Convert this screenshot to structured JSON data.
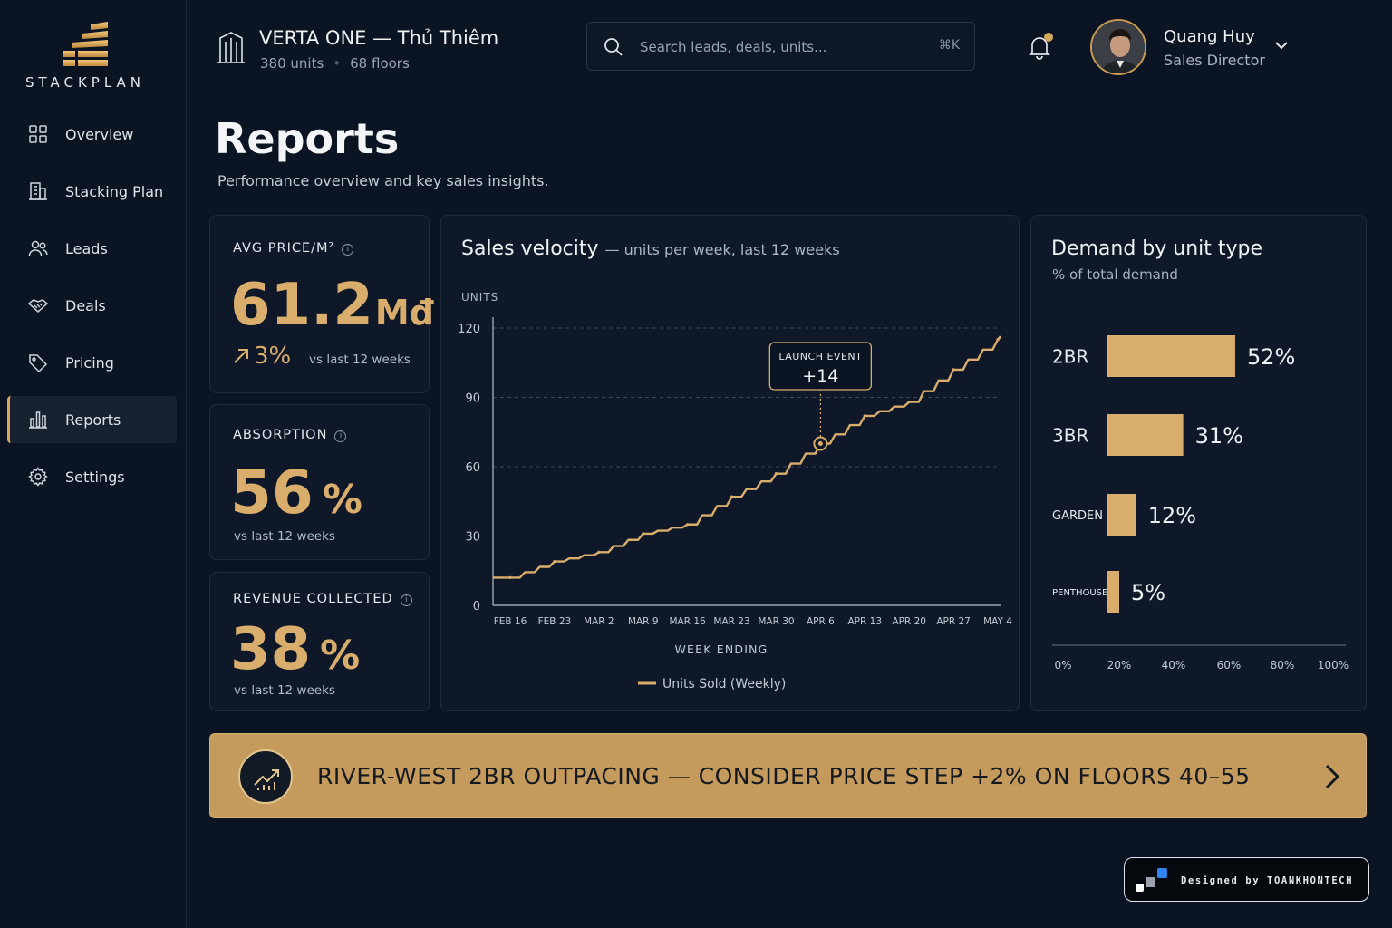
{
  "brand": {
    "name": "STACKPLAN"
  },
  "nav": {
    "items": [
      {
        "label": "Overview",
        "icon": "grid-icon"
      },
      {
        "label": "Stacking Plan",
        "icon": "building-icon"
      },
      {
        "label": "Leads",
        "icon": "users-icon"
      },
      {
        "label": "Deals",
        "icon": "handshake-icon"
      },
      {
        "label": "Pricing",
        "icon": "tag-icon"
      },
      {
        "label": "Reports",
        "icon": "bar-chart-icon",
        "active": true
      },
      {
        "label": "Settings",
        "icon": "gear-icon"
      }
    ]
  },
  "header": {
    "project_title": "VERTA ONE — Thủ Thiêm",
    "units": "380 units",
    "floors": "68 floors",
    "search_placeholder": "Search leads, deals, units...",
    "search_shortcut": "⌘K",
    "user_name": "Quang Huy",
    "user_role": "Sales Director"
  },
  "page": {
    "title": "Reports",
    "subtitle": "Performance overview and key sales insights."
  },
  "kpis": {
    "avg_price": {
      "label": "AVG PRICE/M²",
      "value": "61.2",
      "unit": "Mđ",
      "trend": "3%",
      "note": "vs last 12 weeks"
    },
    "absorption": {
      "label": "ABSORPTION",
      "value": "56",
      "unit": "%",
      "note": "vs last 12 weeks"
    },
    "revenue": {
      "label": "REVENUE COLLECTED",
      "value": "38",
      "unit": "%",
      "note": "vs last 12 weeks"
    }
  },
  "velocity": {
    "title": "Sales velocity",
    "subtitle": "— units per week, last 12 weeks"
  },
  "demand": {
    "title": "Demand by unit type",
    "subtitle": "% of total demand"
  },
  "chart_data": [
    {
      "type": "line",
      "ylabel": "UNITS",
      "xlabel": "WEEK ENDING",
      "ylim": [
        0,
        120
      ],
      "yticks": [
        0,
        30,
        60,
        90,
        120
      ],
      "categories": [
        "FEB 16",
        "FEB 23",
        "MAR 2",
        "MAR 9",
        "MAR 16",
        "MAR 23",
        "MAR 30",
        "APR 6",
        "APR 13",
        "APR 20",
        "APR 27",
        "MAY 4"
      ],
      "series": [
        {
          "name": "Units Sold (Weekly)",
          "color": "#d9ad6b",
          "values": [
            12,
            19,
            23,
            31,
            35,
            47,
            57,
            70,
            82,
            88,
            102,
            115
          ]
        }
      ],
      "annotation": {
        "label": "LAUNCH EVENT",
        "value": "+14",
        "category": "APR 6"
      },
      "grid": true
    },
    {
      "type": "bar",
      "orientation": "horizontal",
      "categories": [
        "2BR",
        "3BR",
        "GARDEN",
        "PENTHOUSE"
      ],
      "values": [
        52,
        31,
        12,
        5
      ],
      "value_labels": [
        "52%",
        "31%",
        "12%",
        "5%"
      ],
      "xticks": [
        "0%",
        "20%",
        "40%",
        "60%",
        "80%",
        "100%"
      ],
      "color": "#d9ad6b"
    }
  ],
  "banner": {
    "text": "RIVER-WEST 2BR OUTPACING — CONSIDER PRICE STEP +2% ON FLOORS 40–55"
  },
  "credit": {
    "text": "Designed by TOANKHONTECH"
  },
  "colors": {
    "accent": "#d9ad6b",
    "background": "#0b1422",
    "card": "#0e1828"
  }
}
